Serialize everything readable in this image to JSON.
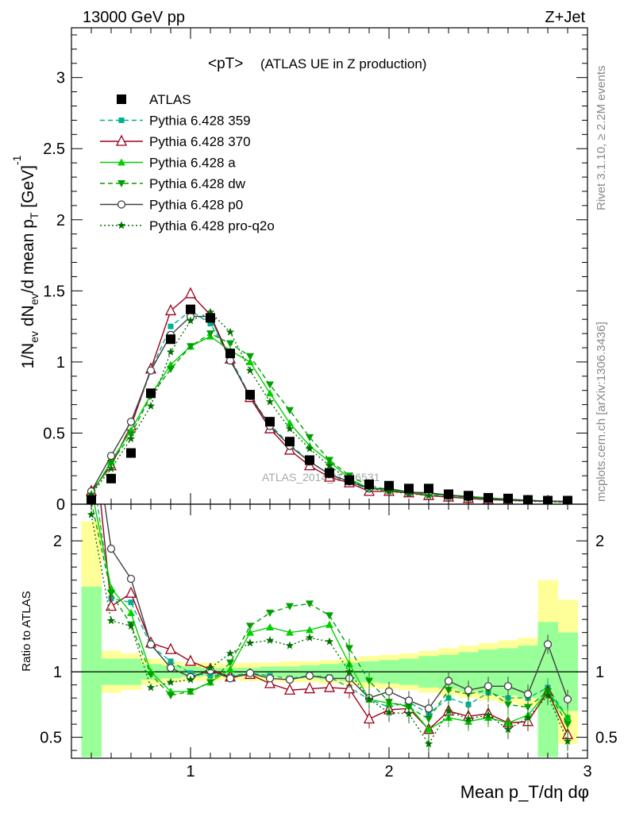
{
  "header": {
    "left": "13000 GeV pp",
    "right": "Z+Jet"
  },
  "side": {
    "top": "Rivet 3.1.10, ≥ 2.2M events",
    "bottom": "mcplots.cern.ch [arXiv:1306.3436]"
  },
  "watermark": "ATLAS_2014_I1736531",
  "chart_data": [
    {
      "type": "line",
      "title": "<pT>",
      "subtitle": "(ATLAS UE in Z production)",
      "ylabel": "1/N_ev dN_ev/d mean p_T [GeV]^-1",
      "xlim": [
        0.4,
        3.0
      ],
      "ylim": [
        0,
        3.35
      ],
      "yticks": [
        0,
        0.5,
        1,
        1.5,
        2,
        2.5,
        3
      ],
      "yticklabels": [
        "0",
        "0.5",
        "1",
        "1.5",
        "2",
        "2.5",
        "3"
      ],
      "x": [
        0.5,
        0.6,
        0.7,
        0.8,
        0.9,
        1.0,
        1.1,
        1.2,
        1.3,
        1.4,
        1.5,
        1.6,
        1.7,
        1.8,
        1.9,
        2.0,
        2.1,
        2.2,
        2.3,
        2.4,
        2.5,
        2.6,
        2.7,
        2.8,
        2.9
      ],
      "legend_position": "top-left",
      "series": [
        {
          "name": "ATLAS",
          "color": "#000000",
          "marker": "square",
          "line": "none",
          "values": [
            0.03,
            0.18,
            0.36,
            0.78,
            1.16,
            1.37,
            1.31,
            1.06,
            0.77,
            0.58,
            0.44,
            0.31,
            0.22,
            0.17,
            0.14,
            0.13,
            0.11,
            0.11,
            0.07,
            0.06,
            0.045,
            0.04,
            0.03,
            0.025,
            0.025
          ]
        },
        {
          "name": "Pythia 6.428 359",
          "color": "#00b090",
          "marker": "small-square",
          "line": "dashed",
          "values": [
            0.08,
            0.28,
            0.55,
            0.94,
            1.25,
            1.36,
            1.27,
            1.03,
            0.76,
            0.56,
            0.42,
            0.3,
            0.21,
            0.15,
            0.11,
            0.095,
            0.085,
            0.075,
            0.06,
            0.05,
            0.04,
            0.035,
            0.028,
            0.022,
            0.018
          ]
        },
        {
          "name": "Pythia 6.428 370",
          "color": "#a0001c",
          "marker": "open-triangle",
          "line": "solid",
          "values": [
            0.09,
            0.27,
            0.55,
            0.95,
            1.36,
            1.48,
            1.33,
            1.02,
            0.75,
            0.53,
            0.38,
            0.27,
            0.19,
            0.15,
            0.09,
            0.09,
            0.08,
            0.06,
            0.05,
            0.04,
            0.032,
            0.028,
            0.022,
            0.021,
            0.014
          ]
        },
        {
          "name": "Pythia 6.428 a",
          "color": "#00d000",
          "marker": "triangle",
          "line": "solid",
          "values": [
            0.07,
            0.3,
            0.52,
            0.77,
            0.98,
            1.11,
            1.18,
            1.08,
            1.0,
            0.78,
            0.57,
            0.41,
            0.3,
            0.18,
            0.11,
            0.1,
            0.085,
            0.075,
            0.065,
            0.055,
            0.045,
            0.035,
            0.028,
            0.022,
            0.018
          ]
        },
        {
          "name": "Pythia 6.428 dw",
          "color": "#00a000",
          "marker": "down-triangle",
          "line": "dashed",
          "values": [
            0.07,
            0.29,
            0.49,
            0.76,
            0.95,
            1.11,
            1.2,
            1.13,
            1.04,
            0.84,
            0.66,
            0.47,
            0.31,
            0.2,
            0.13,
            0.1,
            0.08,
            0.07,
            0.06,
            0.05,
            0.04,
            0.03,
            0.026,
            0.02,
            0.016
          ]
        },
        {
          "name": "Pythia 6.428 p0",
          "color": "#404040",
          "marker": "open-circle",
          "line": "solid",
          "values": [
            0.09,
            0.34,
            0.58,
            0.94,
            1.19,
            1.32,
            1.32,
            1.01,
            0.76,
            0.55,
            0.41,
            0.3,
            0.21,
            0.16,
            0.11,
            0.11,
            0.085,
            0.08,
            0.065,
            0.05,
            0.04,
            0.035,
            0.025,
            0.023,
            0.02
          ]
        },
        {
          "name": "Pythia 6.428 pro-q2o",
          "color": "#007000",
          "marker": "star",
          "line": "dotted",
          "values": [
            0.07,
            0.25,
            0.46,
            0.69,
            1.07,
            1.29,
            1.35,
            1.21,
            0.94,
            0.72,
            0.53,
            0.39,
            0.27,
            0.17,
            0.11,
            0.09,
            0.075,
            0.06,
            0.05,
            0.04,
            0.032,
            0.025,
            0.02,
            0.018,
            0.012
          ]
        }
      ]
    },
    {
      "type": "line",
      "ylabel": "Ratio to ATLAS",
      "xlabel": "Mean p_T/dη dφ",
      "xlim": [
        0.4,
        3.0
      ],
      "ylim": [
        0.34,
        2.28
      ],
      "yticks": [
        0.5,
        1,
        2
      ],
      "yticklabels": [
        "0.5",
        "1",
        "2"
      ],
      "xticks": [
        1,
        2,
        3
      ],
      "xticklabels": [
        "1",
        "2",
        "3"
      ],
      "band_edges": [
        0.45,
        0.55,
        0.65,
        0.75,
        0.85,
        0.95,
        1.05,
        1.15,
        1.25,
        1.35,
        1.45,
        1.55,
        1.65,
        1.75,
        1.85,
        1.95,
        2.05,
        2.15,
        2.25,
        2.35,
        2.45,
        2.55,
        2.65,
        2.75,
        2.85,
        2.95
      ],
      "stat_band": {
        "color": "#99ff99",
        "lo": [
          0.35,
          0.9,
          0.9,
          0.94,
          0.95,
          0.96,
          0.97,
          0.97,
          0.97,
          0.96,
          0.96,
          0.95,
          0.94,
          0.93,
          0.92,
          0.91,
          0.9,
          0.88,
          0.87,
          0.85,
          0.83,
          0.82,
          0.8,
          0.35,
          0.7
        ],
        "hi": [
          1.65,
          1.1,
          1.1,
          1.06,
          1.05,
          1.04,
          1.03,
          1.03,
          1.03,
          1.04,
          1.04,
          1.05,
          1.06,
          1.07,
          1.08,
          1.09,
          1.1,
          1.12,
          1.13,
          1.15,
          1.17,
          1.18,
          1.2,
          1.38,
          1.3
        ]
      },
      "total_band": {
        "color": "#ffff99",
        "lo": [
          0.35,
          0.84,
          0.86,
          0.9,
          0.92,
          0.93,
          0.93,
          0.94,
          0.93,
          0.93,
          0.92,
          0.92,
          0.91,
          0.9,
          0.88,
          0.87,
          0.86,
          0.84,
          0.82,
          0.8,
          0.78,
          0.76,
          0.74,
          0.35,
          0.45
        ],
        "hi": [
          2.15,
          1.16,
          1.14,
          1.1,
          1.08,
          1.07,
          1.07,
          1.06,
          1.07,
          1.07,
          1.08,
          1.08,
          1.09,
          1.1,
          1.12,
          1.13,
          1.14,
          1.16,
          1.18,
          1.2,
          1.22,
          1.24,
          1.26,
          1.7,
          1.55
        ]
      },
      "reference_line": 1,
      "series": [
        {
          "name": "Pythia 6.428 359",
          "color": "#00b090",
          "marker": "small-square",
          "line": "dashed",
          "values": [
            2.6,
            1.56,
            1.53,
            1.2,
            1.08,
            0.99,
            0.97,
            0.97,
            0.99,
            0.97,
            0.95,
            0.97,
            0.96,
            0.88,
            0.79,
            0.73,
            0.77,
            0.68,
            0.8,
            0.75,
            0.84,
            0.8,
            0.8,
            0.88,
            0.65
          ]
        },
        {
          "name": "Pythia 6.428 370",
          "color": "#a0001c",
          "marker": "open-triangle",
          "line": "solid",
          "values": [
            3.0,
            1.5,
            1.6,
            1.22,
            1.17,
            1.08,
            1.02,
            0.96,
            0.98,
            0.91,
            0.86,
            0.87,
            0.88,
            0.87,
            0.64,
            0.71,
            0.72,
            0.56,
            0.7,
            0.66,
            0.68,
            0.61,
            0.62,
            0.85,
            0.52
          ]
        },
        {
          "name": "Pythia 6.428 a",
          "color": "#00d000",
          "marker": "triangle",
          "line": "solid",
          "values": [
            2.4,
            1.64,
            1.45,
            1.0,
            0.85,
            0.85,
            0.92,
            1.02,
            1.3,
            1.34,
            1.3,
            1.32,
            1.36,
            1.06,
            0.79,
            0.76,
            0.74,
            0.56,
            0.65,
            0.62,
            0.65,
            0.61,
            0.67,
            0.85,
            0.65
          ]
        },
        {
          "name": "Pythia 6.428 dw",
          "color": "#00a000",
          "marker": "down-triangle",
          "line": "dashed",
          "values": [
            2.3,
            1.6,
            1.36,
            0.98,
            0.82,
            0.85,
            0.92,
            1.07,
            1.35,
            1.45,
            1.5,
            1.52,
            1.43,
            1.18,
            0.93,
            0.77,
            0.73,
            0.64,
            0.86,
            0.83,
            0.86,
            0.75,
            0.73,
            0.85,
            0.6
          ]
        },
        {
          "name": "Pythia 6.428 p0",
          "color": "#404040",
          "marker": "open-circle",
          "line": "solid",
          "values": [
            3.0,
            1.94,
            1.71,
            1.21,
            1.03,
            0.96,
            1.01,
            0.95,
            0.99,
            0.95,
            0.94,
            0.97,
            0.95,
            0.95,
            0.8,
            0.85,
            0.78,
            0.72,
            0.93,
            0.86,
            0.89,
            0.89,
            0.83,
            1.21,
            0.79
          ]
        },
        {
          "name": "Pythia 6.428 pro-q2o",
          "color": "#007000",
          "marker": "star",
          "line": "dotted",
          "values": [
            2.2,
            1.39,
            1.35,
            0.88,
            0.92,
            0.94,
            1.03,
            1.14,
            1.22,
            1.24,
            1.2,
            1.26,
            1.23,
            1.0,
            0.79,
            0.69,
            0.68,
            0.45,
            0.7,
            0.64,
            0.67,
            0.56,
            0.65,
            0.82,
            0.47
          ]
        }
      ]
    }
  ]
}
